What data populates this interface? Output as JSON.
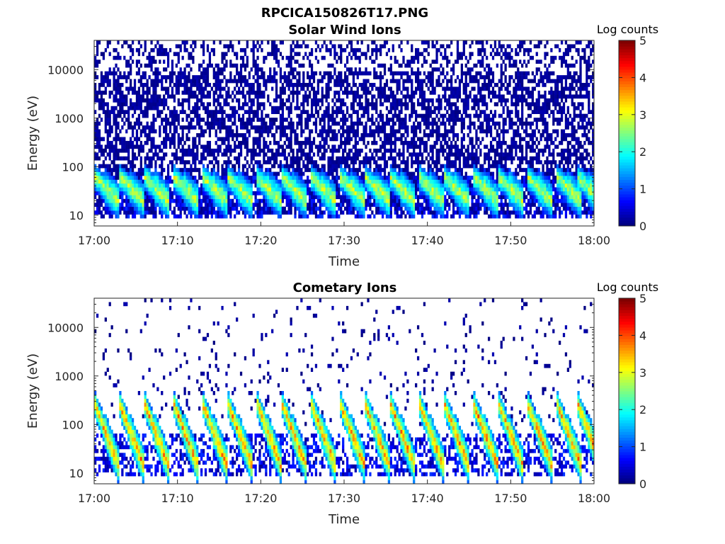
{
  "figure_title": "RPCICA150826T17.PNG",
  "chart_data": [
    {
      "type": "heatmap",
      "title": "Solar Wind Ions",
      "xlabel": "Time",
      "ylabel": "Energy (eV)",
      "x_ticks": [
        "17:00",
        "17:10",
        "17:20",
        "17:30",
        "17:40",
        "17:50",
        "18:00"
      ],
      "y_ticks": [
        "10",
        "100",
        "1000",
        "10000"
      ],
      "y_scale": "log",
      "ylim": [
        6,
        40000
      ],
      "xlim_minutes": [
        0,
        60
      ],
      "colorbar": {
        "label": "Log counts",
        "ticks": [
          "0",
          "1",
          "2",
          "3",
          "4",
          "5"
        ],
        "range": [
          0,
          5
        ],
        "colormap": "jet"
      },
      "background_noise": {
        "energy_range": [
          10,
          40000
        ],
        "level": 0.6
      },
      "pulses_minutes": [
        0.5,
        3.5,
        6.5,
        10,
        13.5,
        16.5,
        20,
        23,
        26.5,
        30,
        33,
        36,
        39.5,
        42.5,
        46,
        49,
        52.5,
        56,
        58.5
      ],
      "pulse_peak_log_counts": 3.3,
      "pulse_energy_eV": [
        20,
        60
      ]
    },
    {
      "type": "heatmap",
      "title": "Cometary Ions",
      "xlabel": "Time",
      "ylabel": "Energy (eV)",
      "x_ticks": [
        "17:00",
        "17:10",
        "17:20",
        "17:30",
        "17:40",
        "17:50",
        "18:00"
      ],
      "y_ticks": [
        "10",
        "100",
        "1000",
        "10000"
      ],
      "y_scale": "log",
      "ylim": [
        6,
        40000
      ],
      "xlim_minutes": [
        0,
        60
      ],
      "colorbar": {
        "label": "Log counts",
        "ticks": [
          "0",
          "1",
          "2",
          "3",
          "4",
          "5"
        ],
        "range": [
          0,
          5
        ],
        "colormap": "jet"
      },
      "background_noise": {
        "energy_range": [
          100,
          40000
        ],
        "level": 0.05
      },
      "pulses_minutes": [
        0.5,
        3.5,
        6.5,
        10,
        13.5,
        16.5,
        20,
        23,
        26.5,
        30,
        33,
        36,
        39.5,
        42.5,
        46,
        49,
        52.5,
        56,
        58.5
      ],
      "pulse_peak_log_counts": 4.2,
      "pulse_energy_eV": [
        15,
        250
      ]
    }
  ]
}
